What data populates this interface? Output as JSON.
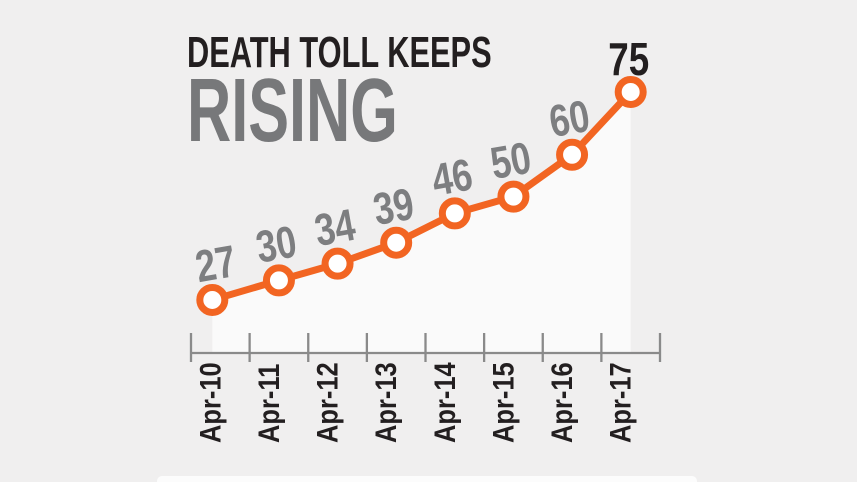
{
  "title": {
    "line1": "DEATH TOLL KEEPS",
    "line2": "RISING"
  },
  "chart_data": {
    "type": "line",
    "categories": [
      "Apr-10",
      "Apr-11",
      "Apr-12",
      "Apr-13",
      "Apr-14",
      "Apr-15",
      "Apr-16",
      "Apr-17"
    ],
    "values": [
      27,
      30,
      34,
      39,
      46,
      50,
      60,
      75
    ],
    "title": "DEATH TOLL KEEPS RISING",
    "xlabel": "",
    "ylabel": "",
    "ylim": [
      20,
      80
    ],
    "grid": false,
    "legend": "none",
    "colors": {
      "line": "#f26522",
      "marker_fill": "#ffffff",
      "value_label": "#7d7e80",
      "last_value_label": "#231f20",
      "axis": "#8a8a8a",
      "tick_label": "#231f20",
      "background": "#f0efef",
      "area_fill": "#fafafa",
      "title_black": "#231f20",
      "title_gray": "#77787a"
    }
  }
}
